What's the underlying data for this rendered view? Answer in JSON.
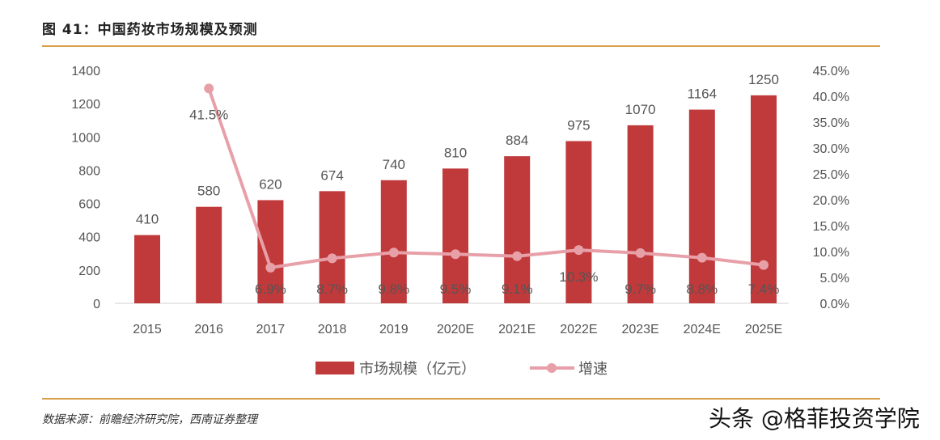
{
  "title": "图 41：中国药妆市场规模及预测",
  "source": "数据来源：前瞻经济研究院，西南证券整理",
  "watermark": "头条 @格菲投资学院",
  "chart_data": {
    "type": "bar+line",
    "categories": [
      "2015",
      "2016",
      "2017",
      "2018",
      "2019",
      "2020E",
      "2021E",
      "2022E",
      "2023E",
      "2024E",
      "2025E"
    ],
    "series": [
      {
        "name": "市场规模（亿元）",
        "type": "bar",
        "axis": "left",
        "color": "#c0393b",
        "values": [
          410,
          580,
          620,
          674,
          740,
          810,
          884,
          975,
          1070,
          1164,
          1250
        ]
      },
      {
        "name": "增速",
        "type": "line",
        "axis": "right",
        "color": "#e8a0a8",
        "values": [
          null,
          41.5,
          6.9,
          8.7,
          9.8,
          9.5,
          9.1,
          10.3,
          9.7,
          8.8,
          7.4
        ]
      }
    ],
    "yleft": {
      "range": [
        0,
        1400
      ],
      "ticks": [
        0,
        200,
        400,
        600,
        800,
        1000,
        1200,
        1400
      ]
    },
    "yright": {
      "range": [
        0,
        45
      ],
      "ticks": [
        "0.0%",
        "5.0%",
        "10.0%",
        "15.0%",
        "20.0%",
        "25.0%",
        "30.0%",
        "35.0%",
        "40.0%",
        "45.0%"
      ]
    },
    "legend": "bottom",
    "grid": false
  }
}
